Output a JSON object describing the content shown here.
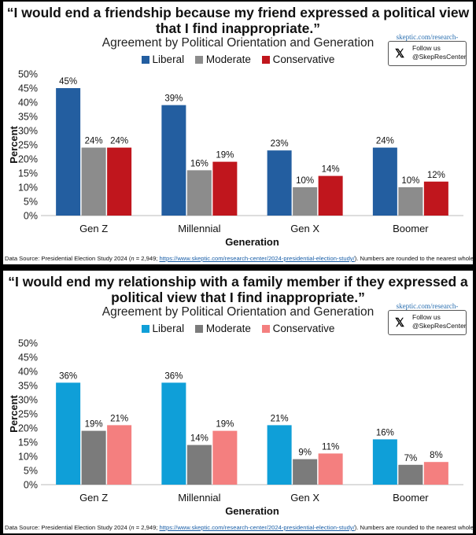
{
  "chart_data": [
    {
      "type": "bar",
      "title_lines": [
        "“I would end a friendship because my friend expressed a political view",
        "that I find inappropriate.”"
      ],
      "subtitle": "Agreement by Political Orientation and Generation",
      "categories": [
        "Gen Z",
        "Millennial",
        "Gen X",
        "Boomer"
      ],
      "series": [
        {
          "name": "Liberal",
          "values": [
            45,
            39,
            23,
            24
          ],
          "color": "#235ea0"
        },
        {
          "name": "Moderate",
          "values": [
            24,
            16,
            10,
            10
          ],
          "color": "#8c8c8c"
        },
        {
          "name": "Conservative",
          "values": [
            24,
            19,
            14,
            12
          ],
          "color": "#c0161d"
        }
      ],
      "xlabel": "Generation",
      "ylabel": "Percent",
      "ylim": [
        0,
        50
      ],
      "yticks": [
        "0%",
        "5%",
        "10%",
        "15%",
        "20%",
        "25%",
        "30%",
        "35%",
        "40%",
        "45%",
        "50%"
      ],
      "data_labels": [
        [
          "45%",
          "39%",
          "23%",
          "24%"
        ],
        [
          "24%",
          "16%",
          "10%",
          "10%"
        ],
        [
          "24%",
          "19%",
          "14%",
          "12%"
        ]
      ],
      "source_prefix": "Data Source: Presidential Election Study 2024 (",
      "source_n": "n",
      "source_count": " = 2,949; ",
      "source_link": "https://www.skeptic.com/research-center/2024-presidential-election-study/",
      "source_suffix": "). Numbers are rounded to the nearest whole."
    },
    {
      "type": "bar",
      "title_lines": [
        "“I would end my relationship with a family member if they expressed a",
        "political view that I find inappropriate.”"
      ],
      "subtitle": "Agreement by Political Orientation and Generation",
      "categories": [
        "Gen Z",
        "Millennial",
        "Gen X",
        "Boomer"
      ],
      "series": [
        {
          "name": "Liberal",
          "values": [
            36,
            36,
            21,
            16
          ],
          "color": "#0f9fd8"
        },
        {
          "name": "Moderate",
          "values": [
            19,
            14,
            9,
            7
          ],
          "color": "#7b7b7b"
        },
        {
          "name": "Conservative",
          "values": [
            21,
            19,
            11,
            8
          ],
          "color": "#f47f7f"
        }
      ],
      "xlabel": "Generation",
      "ylabel": "Percent",
      "ylim": [
        0,
        50
      ],
      "yticks": [
        "0%",
        "5%",
        "10%",
        "15%",
        "20%",
        "25%",
        "30%",
        "35%",
        "40%",
        "45%",
        "50%"
      ],
      "data_labels": [
        [
          "36%",
          "36%",
          "21%",
          "16%"
        ],
        [
          "19%",
          "14%",
          "9%",
          "7%"
        ],
        [
          "21%",
          "19%",
          "11%",
          "8%"
        ]
      ],
      "source_prefix": "Data Source: Presidential Election Study 2024 (",
      "source_n": "n",
      "source_count": " = 2,949; ",
      "source_link": "https://www.skeptic.com/research-center/2024-presidential-election-study/",
      "source_suffix": "). Numbers are rounded to the nearest whole."
    }
  ],
  "badge": {
    "url": "skeptic.com/research-center",
    "x_glyph": "𝕏",
    "follow": "Follow us",
    "handle": "@SkepResCenter"
  }
}
